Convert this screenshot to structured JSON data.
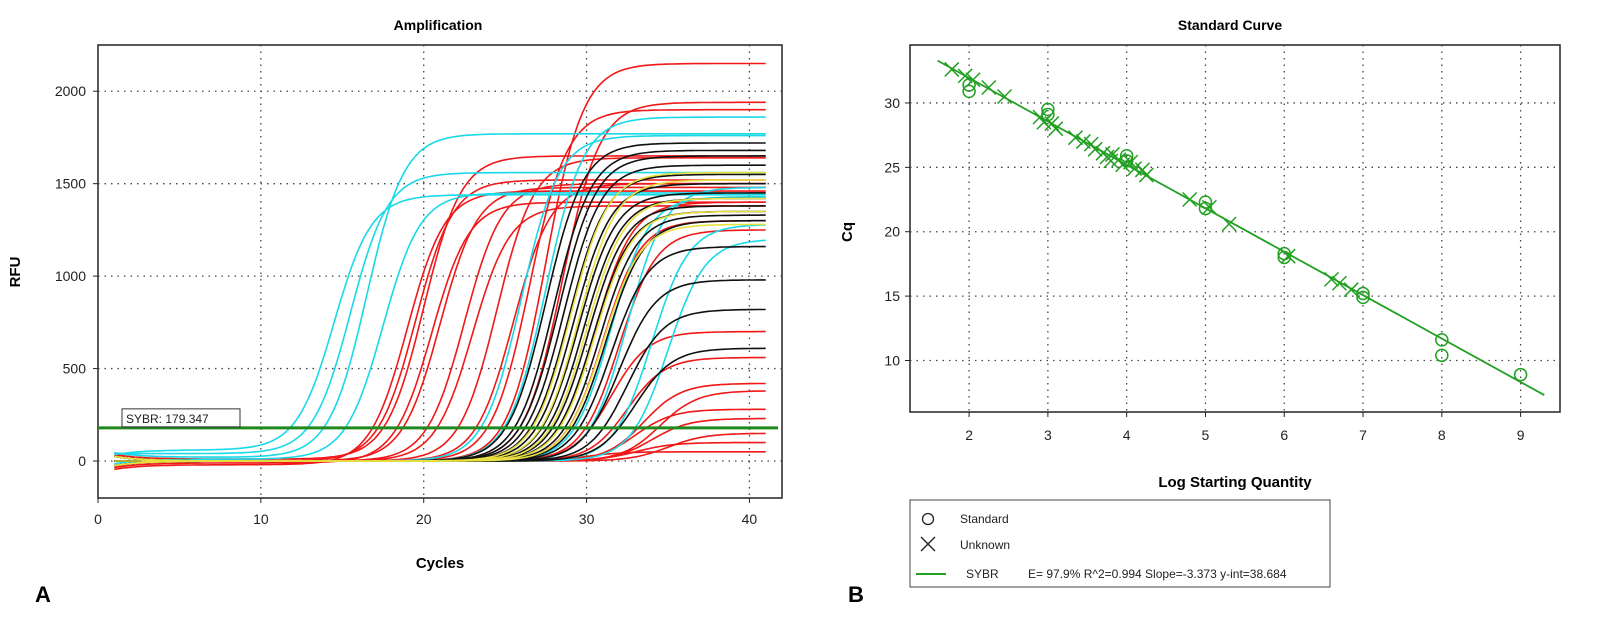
{
  "chart_data": [
    {
      "type": "line",
      "panel_label": "A",
      "title": "Amplification",
      "xlabel": "Cycles",
      "ylabel": "RFU",
      "xlim": [
        0,
        42
      ],
      "ylim": [
        -200,
        2250
      ],
      "xticks": [
        0,
        10,
        20,
        30,
        40
      ],
      "yticks": [
        0,
        500,
        1000,
        1500,
        2000
      ],
      "grid": true,
      "threshold": {
        "label": "SYBR: 179.347",
        "value": 179.347,
        "color": "#1e8a1e"
      },
      "series_colors": {
        "cyan": "#19d9e8",
        "red": "#f01818",
        "black": "#111111",
        "yellow": "#e8e040"
      },
      "series": [
        {
          "name": "cyan-1",
          "color": "cyan",
          "midpoint": 14.5,
          "plateau": 1440,
          "baseline": 60
        },
        {
          "name": "cyan-2",
          "color": "cyan",
          "midpoint": 15.5,
          "plateau": 1560,
          "baseline": 40
        },
        {
          "name": "cyan-3",
          "color": "cyan",
          "midpoint": 16.5,
          "plateau": 1770,
          "baseline": 20
        },
        {
          "name": "cyan-4",
          "color": "cyan",
          "midpoint": 17.5,
          "plateau": 1450,
          "baseline": 10
        },
        {
          "name": "cyan-5",
          "color": "cyan",
          "midpoint": 26.0,
          "plateau": 1760,
          "baseline": 0
        },
        {
          "name": "cyan-6",
          "color": "cyan",
          "midpoint": 27.5,
          "plateau": 1860,
          "baseline": 0
        },
        {
          "name": "cyan-7",
          "color": "cyan",
          "midpoint": 31.5,
          "plateau": 1430,
          "baseline": 0
        },
        {
          "name": "cyan-8",
          "color": "cyan",
          "midpoint": 32.5,
          "plateau": 1480,
          "baseline": 0
        },
        {
          "name": "cyan-9",
          "color": "cyan",
          "midpoint": 34.0,
          "plateau": 1280,
          "baseline": 0
        },
        {
          "name": "cyan-10",
          "color": "cyan",
          "midpoint": 35.0,
          "plateau": 1200,
          "baseline": 0
        },
        {
          "name": "red-1",
          "color": "red",
          "midpoint": 19.0,
          "plateau": 1460,
          "baseline": -20
        },
        {
          "name": "red-2",
          "color": "red",
          "midpoint": 19.5,
          "plateau": 1520,
          "baseline": 0
        },
        {
          "name": "red-3",
          "color": "red",
          "midpoint": 20.0,
          "plateau": 1650,
          "baseline": 10
        },
        {
          "name": "red-4",
          "color": "red",
          "midpoint": 20.5,
          "plateau": 1400,
          "baseline": -10
        },
        {
          "name": "red-5",
          "color": "red",
          "midpoint": 21.0,
          "plateau": 1480,
          "baseline": 0
        },
        {
          "name": "red-6",
          "color": "red",
          "midpoint": 22.5,
          "plateau": 1500,
          "baseline": 0
        },
        {
          "name": "red-7",
          "color": "red",
          "midpoint": 23.0,
          "plateau": 1380,
          "baseline": 0
        },
        {
          "name": "red-8",
          "color": "red",
          "midpoint": 24.5,
          "plateau": 1640,
          "baseline": 0
        },
        {
          "name": "red-9",
          "color": "red",
          "midpoint": 25.5,
          "plateau": 1500,
          "baseline": 0
        },
        {
          "name": "red-10",
          "color": "red",
          "midpoint": 26.5,
          "plateau": 1900,
          "baseline": 0
        },
        {
          "name": "red-11",
          "color": "red",
          "midpoint": 27.5,
          "plateau": 2150,
          "baseline": 0
        },
        {
          "name": "red-12",
          "color": "red",
          "midpoint": 28.5,
          "plateau": 1940,
          "baseline": 0
        },
        {
          "name": "red-13",
          "color": "red",
          "midpoint": 30.5,
          "plateau": 1400,
          "baseline": 0
        },
        {
          "name": "red-14",
          "color": "red",
          "midpoint": 31.0,
          "plateau": 1300,
          "baseline": 0
        },
        {
          "name": "red-15",
          "color": "red",
          "midpoint": 32.0,
          "plateau": 1250,
          "baseline": 0
        },
        {
          "name": "red-16",
          "color": "red",
          "midpoint": 31.5,
          "plateau": 700,
          "baseline": 0
        },
        {
          "name": "red-17",
          "color": "red",
          "midpoint": 32.5,
          "plateau": 560,
          "baseline": 0
        },
        {
          "name": "red-18",
          "color": "red",
          "midpoint": 33.5,
          "plateau": 420,
          "baseline": 0
        },
        {
          "name": "red-19",
          "color": "red",
          "midpoint": 34.5,
          "plateau": 380,
          "baseline": 0
        },
        {
          "name": "red-20",
          "color": "red",
          "midpoint": 33.0,
          "plateau": 280,
          "baseline": 0
        },
        {
          "name": "red-21",
          "color": "red",
          "midpoint": 34.0,
          "plateau": 230,
          "baseline": 0
        },
        {
          "name": "red-22",
          "color": "red",
          "midpoint": 35.0,
          "plateau": 150,
          "baseline": 0
        },
        {
          "name": "red-23",
          "color": "red",
          "midpoint": 33.0,
          "plateau": 100,
          "baseline": 0
        },
        {
          "name": "red-24",
          "color": "red",
          "midpoint": 30.0,
          "plateau": 50,
          "baseline": 0
        },
        {
          "name": "black-1",
          "color": "black",
          "midpoint": 27.5,
          "plateau": 1720,
          "baseline": 0
        },
        {
          "name": "black-2",
          "color": "black",
          "midpoint": 28.0,
          "plateau": 1680,
          "baseline": 0
        },
        {
          "name": "black-3",
          "color": "black",
          "midpoint": 28.3,
          "plateau": 1650,
          "baseline": 0
        },
        {
          "name": "black-4",
          "color": "black",
          "midpoint": 28.6,
          "plateau": 1600,
          "baseline": 0
        },
        {
          "name": "black-5",
          "color": "black",
          "midpoint": 28.9,
          "plateau": 1550,
          "baseline": 0
        },
        {
          "name": "black-6",
          "color": "black",
          "midpoint": 29.2,
          "plateau": 1500,
          "baseline": 0
        },
        {
          "name": "black-7",
          "color": "black",
          "midpoint": 29.5,
          "plateau": 1450,
          "baseline": 0
        },
        {
          "name": "black-8",
          "color": "black",
          "midpoint": 29.8,
          "plateau": 1420,
          "baseline": 0
        },
        {
          "name": "black-9",
          "color": "black",
          "midpoint": 30.1,
          "plateau": 1380,
          "baseline": 0
        },
        {
          "name": "black-10",
          "color": "black",
          "midpoint": 30.4,
          "plateau": 1350,
          "baseline": 0
        },
        {
          "name": "black-11",
          "color": "black",
          "midpoint": 30.8,
          "plateau": 1330,
          "baseline": 0
        },
        {
          "name": "black-12",
          "color": "black",
          "midpoint": 31.2,
          "plateau": 1300,
          "baseline": 0
        },
        {
          "name": "black-13",
          "color": "black",
          "midpoint": 31.5,
          "plateau": 1160,
          "baseline": 0
        },
        {
          "name": "black-14",
          "color": "black",
          "midpoint": 32.0,
          "plateau": 980,
          "baseline": 0
        },
        {
          "name": "black-15",
          "color": "black",
          "midpoint": 32.5,
          "plateau": 820,
          "baseline": 0
        },
        {
          "name": "black-16",
          "color": "black",
          "midpoint": 33.0,
          "plateau": 610,
          "baseline": 0
        },
        {
          "name": "yellow-1",
          "color": "yellow",
          "midpoint": 29.0,
          "plateau": 1560,
          "baseline": 0
        },
        {
          "name": "yellow-2",
          "color": "yellow",
          "midpoint": 29.5,
          "plateau": 1520,
          "baseline": 0
        },
        {
          "name": "yellow-3",
          "color": "yellow",
          "midpoint": 30.0,
          "plateau": 1420,
          "baseline": 0
        },
        {
          "name": "yellow-4",
          "color": "yellow",
          "midpoint": 30.5,
          "plateau": 1350,
          "baseline": 0
        },
        {
          "name": "yellow-5",
          "color": "yellow",
          "midpoint": 31.0,
          "plateau": 1280,
          "baseline": 0
        }
      ]
    },
    {
      "type": "scatter",
      "panel_label": "B",
      "title": "Standard Curve",
      "xlabel": "Log Starting Quantity",
      "ylabel": "Cq",
      "xlim": [
        1.25,
        9.5
      ],
      "ylim": [
        6,
        34.5
      ],
      "xticks": [
        2,
        3,
        4,
        5,
        6,
        7,
        8,
        9
      ],
      "yticks": [
        10,
        15,
        20,
        25,
        30
      ],
      "grid": true,
      "color": "#22a022",
      "fit": {
        "slope": -3.373,
        "intercept": 38.684,
        "x_range": [
          1.6,
          9.3
        ]
      },
      "standards": [
        {
          "x": 2.0,
          "y": 30.9
        },
        {
          "x": 2.0,
          "y": 31.4
        },
        {
          "x": 3.0,
          "y": 29.1
        },
        {
          "x": 3.0,
          "y": 29.5
        },
        {
          "x": 4.0,
          "y": 25.5
        },
        {
          "x": 4.0,
          "y": 25.9
        },
        {
          "x": 5.0,
          "y": 21.8
        },
        {
          "x": 5.0,
          "y": 22.3
        },
        {
          "x": 6.0,
          "y": 18.0
        },
        {
          "x": 6.0,
          "y": 18.3
        },
        {
          "x": 7.0,
          "y": 14.9
        },
        {
          "x": 7.0,
          "y": 15.2
        },
        {
          "x": 8.0,
          "y": 10.4
        },
        {
          "x": 8.0,
          "y": 11.6
        },
        {
          "x": 9.0,
          "y": 8.9
        }
      ],
      "unknowns": [
        {
          "x": 1.78,
          "y": 32.6
        },
        {
          "x": 1.95,
          "y": 32.1
        },
        {
          "x": 2.05,
          "y": 31.8
        },
        {
          "x": 2.25,
          "y": 31.2
        },
        {
          "x": 2.45,
          "y": 30.5
        },
        {
          "x": 2.9,
          "y": 28.9
        },
        {
          "x": 2.95,
          "y": 28.5
        },
        {
          "x": 3.05,
          "y": 28.4
        },
        {
          "x": 3.1,
          "y": 28.0
        },
        {
          "x": 3.35,
          "y": 27.3
        },
        {
          "x": 3.45,
          "y": 27.0
        },
        {
          "x": 3.55,
          "y": 26.8
        },
        {
          "x": 3.6,
          "y": 26.4
        },
        {
          "x": 3.7,
          "y": 26.1
        },
        {
          "x": 3.75,
          "y": 25.8
        },
        {
          "x": 3.8,
          "y": 25.5
        },
        {
          "x": 3.82,
          "y": 26.0
        },
        {
          "x": 3.9,
          "y": 25.6
        },
        {
          "x": 3.95,
          "y": 25.2
        },
        {
          "x": 4.05,
          "y": 25.4
        },
        {
          "x": 4.1,
          "y": 24.9
        },
        {
          "x": 4.2,
          "y": 24.8
        },
        {
          "x": 4.25,
          "y": 24.4
        },
        {
          "x": 4.8,
          "y": 22.5
        },
        {
          "x": 5.05,
          "y": 21.9
        },
        {
          "x": 5.3,
          "y": 20.6
        },
        {
          "x": 6.05,
          "y": 18.1
        },
        {
          "x": 6.6,
          "y": 16.3
        },
        {
          "x": 6.7,
          "y": 16.0
        },
        {
          "x": 6.85,
          "y": 15.5
        }
      ],
      "legend": [
        {
          "marker": "circle",
          "label": "Standard"
        },
        {
          "marker": "cross",
          "label": "Unknown"
        },
        {
          "marker": "line",
          "label": "SYBR",
          "stats": "E= 97.9% R^2=0.994 Slope=-3.373 y-int=38.684"
        }
      ]
    }
  ]
}
